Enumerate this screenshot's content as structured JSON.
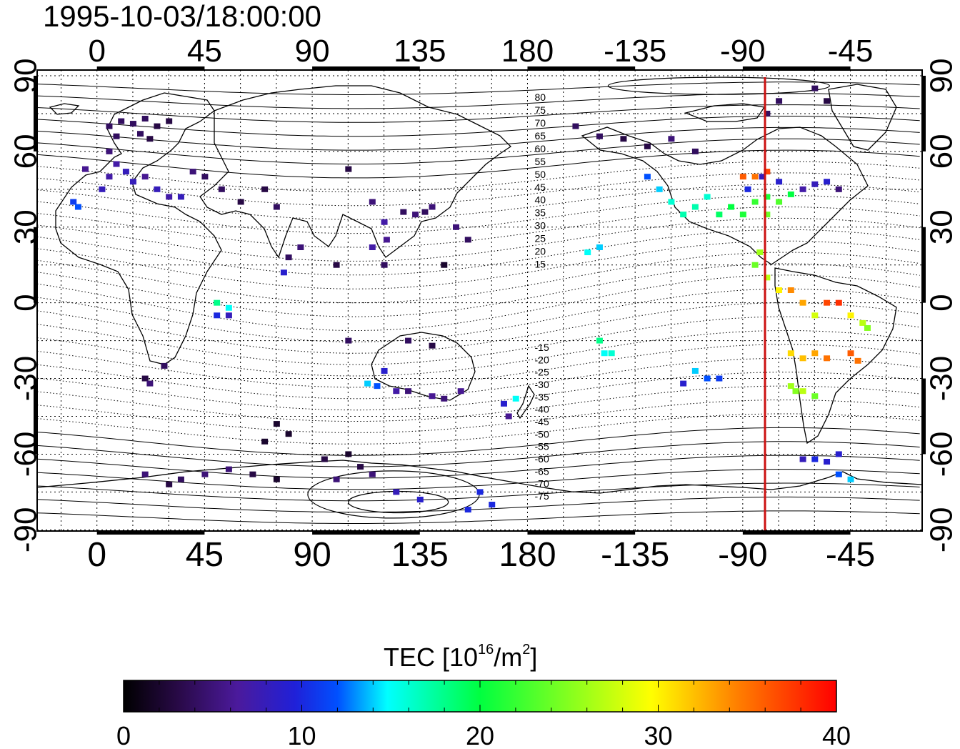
{
  "title": "1995-10-03/18:00:00",
  "map": {
    "projection": "equirectangular",
    "lon_range": [
      -25,
      345
    ],
    "lat_range": [
      -90,
      90
    ],
    "top_lon_ticks": [
      "0",
      "45",
      "90",
      "135",
      "180",
      "-135",
      "-90",
      "-45"
    ],
    "bottom_lon_ticks": [
      "0",
      "45",
      "90",
      "135",
      "180",
      "-135",
      "-90",
      "-45"
    ],
    "lat_ticks": [
      "90",
      "60",
      "30",
      "0",
      "-30",
      "-60",
      "-90"
    ],
    "grid": "dotted every 15 degrees",
    "meridian_marker": {
      "lon": -90,
      "color": "#cc1111"
    },
    "magnetic_contour_labels": [
      "80",
      "75",
      "70",
      "65",
      "60",
      "55",
      "50",
      "45",
      "40",
      "35",
      "30",
      "25",
      "20",
      "15",
      "-15",
      "-20",
      "-25",
      "-30",
      "-35",
      "-40",
      "-45",
      "-50",
      "-55",
      "-60",
      "-65",
      "-70",
      "-75"
    ]
  },
  "colorbar": {
    "label_main": "TEC  [10",
    "label_sup1": "16",
    "label_mid": "/m",
    "label_sup2": "2",
    "label_end": "]",
    "min": 0,
    "max": 40,
    "tick_labels": [
      "0",
      "10",
      "20",
      "30",
      "40"
    ],
    "colors": [
      "#000000",
      "#2a0a4a",
      "#4b1a9c",
      "#2020d8",
      "#0050ff",
      "#00ffff",
      "#00ff40",
      "#ffff00",
      "#ff8000",
      "#ff0000"
    ]
  },
  "chart_data": {
    "type": "scatter",
    "title": "1995-10-03/18:00:00",
    "xlabel": "",
    "ylabel": "",
    "xlim": [
      -25,
      345
    ],
    "ylim": [
      -90,
      90
    ],
    "value_label": "TEC  [10^16/m^2]",
    "value_range": [
      0,
      40
    ],
    "points_lon_lat_tec": [
      [
        5,
        70,
        4
      ],
      [
        10,
        72,
        4
      ],
      [
        15,
        71,
        4
      ],
      [
        20,
        73,
        4
      ],
      [
        25,
        70,
        3
      ],
      [
        30,
        72,
        3
      ],
      [
        8,
        66,
        4
      ],
      [
        18,
        67,
        4
      ],
      [
        22,
        65,
        3
      ],
      [
        5,
        60,
        5
      ],
      [
        8,
        55,
        7
      ],
      [
        12,
        52,
        8
      ],
      [
        15,
        48,
        8
      ],
      [
        5,
        50,
        7
      ],
      [
        2,
        45,
        8
      ],
      [
        -5,
        53,
        6
      ],
      [
        -10,
        40,
        11
      ],
      [
        -8,
        38,
        12
      ],
      [
        20,
        50,
        6
      ],
      [
        25,
        45,
        8
      ],
      [
        30,
        42,
        7
      ],
      [
        35,
        42,
        8
      ],
      [
        40,
        52,
        5
      ],
      [
        45,
        50,
        4
      ],
      [
        52,
        45,
        4
      ],
      [
        60,
        40,
        3
      ],
      [
        75,
        38,
        4
      ],
      [
        70,
        45,
        3
      ],
      [
        80,
        18,
        4
      ],
      [
        78,
        12,
        9
      ],
      [
        85,
        22,
        5
      ],
      [
        105,
        53,
        3
      ],
      [
        115,
        40,
        5
      ],
      [
        120,
        32,
        7
      ],
      [
        121,
        25,
        6
      ],
      [
        128,
        36,
        4
      ],
      [
        133,
        35,
        5
      ],
      [
        137,
        36,
        4
      ],
      [
        140,
        38,
        5
      ],
      [
        150,
        30,
        5
      ],
      [
        155,
        25,
        4
      ],
      [
        145,
        15,
        2
      ],
      [
        115,
        22,
        7
      ],
      [
        120,
        15,
        4
      ],
      [
        100,
        15,
        3
      ],
      [
        50,
        0,
        18
      ],
      [
        55,
        -2,
        15
      ],
      [
        50,
        -5,
        10
      ],
      [
        55,
        -5,
        8
      ],
      [
        28,
        -25,
        4
      ],
      [
        20,
        -30,
        3
      ],
      [
        22,
        -32,
        5
      ],
      [
        105,
        -15,
        4
      ],
      [
        130,
        -15,
        4
      ],
      [
        140,
        -17,
        3
      ],
      [
        113,
        -32,
        14
      ],
      [
        117,
        -33,
        12
      ],
      [
        120,
        -27,
        9
      ],
      [
        125,
        -35,
        7
      ],
      [
        130,
        -35,
        5
      ],
      [
        140,
        -37,
        6
      ],
      [
        145,
        -38,
        5
      ],
      [
        152,
        -35,
        6
      ],
      [
        170,
        -40,
        9
      ],
      [
        175,
        -38,
        15
      ],
      [
        172,
        -45,
        6
      ],
      [
        75,
        -48,
        2
      ],
      [
        80,
        -52,
        2
      ],
      [
        70,
        -55,
        2
      ],
      [
        95,
        -62,
        3
      ],
      [
        105,
        -60,
        2
      ],
      [
        110,
        -65,
        3
      ],
      [
        75,
        -70,
        2
      ],
      [
        20,
        -68,
        5
      ],
      [
        35,
        -70,
        4
      ],
      [
        45,
        -68,
        5
      ],
      [
        55,
        -66,
        5
      ],
      [
        65,
        -68,
        3
      ],
      [
        30,
        -72,
        3
      ],
      [
        100,
        -70,
        5
      ],
      [
        115,
        -68,
        5
      ],
      [
        125,
        -75,
        8
      ],
      [
        135,
        -78,
        9
      ],
      [
        160,
        -75,
        10
      ],
      [
        165,
        -80,
        10
      ],
      [
        155,
        -82,
        10
      ],
      [
        -160,
        70,
        4
      ],
      [
        -150,
        66,
        4
      ],
      [
        -140,
        65,
        3
      ],
      [
        -130,
        62,
        3
      ],
      [
        -110,
        60,
        4
      ],
      [
        -120,
        65,
        5
      ],
      [
        -130,
        50,
        12
      ],
      [
        -125,
        45,
        14
      ],
      [
        -120,
        40,
        16
      ],
      [
        -115,
        35,
        17
      ],
      [
        -110,
        38,
        17
      ],
      [
        -105,
        42,
        16
      ],
      [
        -100,
        35,
        19
      ],
      [
        -95,
        38,
        20
      ],
      [
        -90,
        35,
        21
      ],
      [
        -85,
        40,
        22
      ],
      [
        -80,
        42,
        21
      ],
      [
        -75,
        40,
        23
      ],
      [
        -70,
        43,
        20
      ],
      [
        -80,
        35,
        24
      ],
      [
        -88,
        45,
        10
      ],
      [
        -82,
        50,
        8
      ],
      [
        -75,
        48,
        9
      ],
      [
        -65,
        45,
        7
      ],
      [
        -60,
        47,
        8
      ],
      [
        -55,
        48,
        9
      ],
      [
        -50,
        45,
        5
      ],
      [
        -85,
        50,
        35
      ],
      [
        -90,
        50,
        36
      ],
      [
        -80,
        52,
        37
      ],
      [
        -155,
        20,
        15
      ],
      [
        -150,
        22,
        14
      ],
      [
        -150,
        -15,
        18
      ],
      [
        -148,
        -20,
        15
      ],
      [
        -145,
        -20,
        16
      ],
      [
        -110,
        -27,
        14
      ],
      [
        -105,
        -30,
        12
      ],
      [
        -100,
        -30,
        11
      ],
      [
        -115,
        -32,
        9
      ],
      [
        -85,
        15,
        24
      ],
      [
        -83,
        20,
        26
      ],
      [
        -80,
        10,
        27
      ],
      [
        -75,
        5,
        30
      ],
      [
        -70,
        5,
        34
      ],
      [
        -65,
        0,
        33
      ],
      [
        -60,
        -5,
        28
      ],
      [
        -55,
        0,
        37
      ],
      [
        -50,
        0,
        38
      ],
      [
        -45,
        -5,
        30
      ],
      [
        -40,
        -8,
        27
      ],
      [
        -38,
        -10,
        25
      ],
      [
        -70,
        -20,
        31
      ],
      [
        -65,
        -22,
        32
      ],
      [
        -60,
        -20,
        33
      ],
      [
        -55,
        -22,
        35
      ],
      [
        -45,
        -20,
        36
      ],
      [
        -42,
        -23,
        35
      ],
      [
        -70,
        -33,
        26
      ],
      [
        -68,
        -35,
        25
      ],
      [
        -65,
        -35,
        27
      ],
      [
        -60,
        -37,
        24
      ],
      [
        -65,
        -62,
        8
      ],
      [
        -60,
        -62,
        10
      ],
      [
        -55,
        -63,
        9
      ],
      [
        -50,
        -60,
        9
      ],
      [
        -45,
        -70,
        14
      ],
      [
        -50,
        -68,
        12
      ],
      [
        -60,
        85,
        4
      ],
      [
        -55,
        80,
        3
      ],
      [
        -80,
        75,
        4
      ],
      [
        -75,
        80,
        4
      ]
    ]
  }
}
